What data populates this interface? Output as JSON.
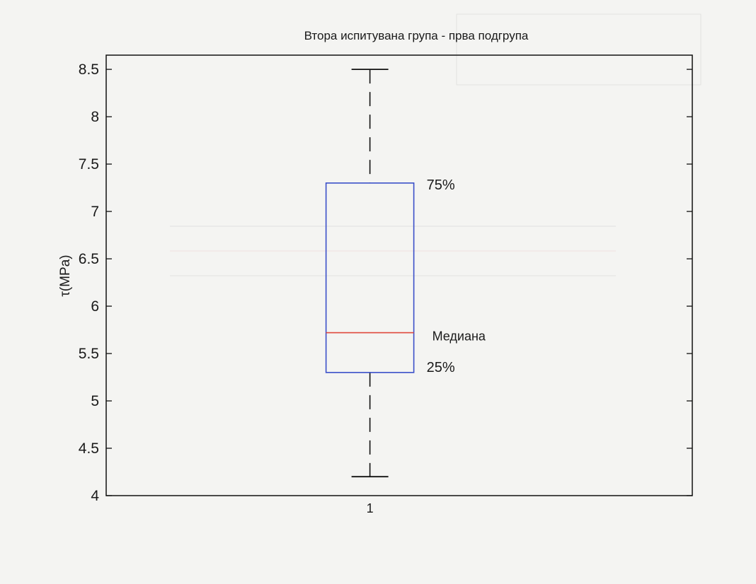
{
  "chart_data": {
    "type": "box",
    "title": "Втора испитувана група - прва подгрупа",
    "xlabel": "",
    "ylabel": "τ(MPa)",
    "ylim": [
      4,
      8.65
    ],
    "yticks": [
      4,
      4.5,
      5,
      5.5,
      6,
      6.5,
      7,
      7.5,
      8,
      8.5
    ],
    "ytick_labels": [
      "4",
      "4.5",
      "5",
      "5.5",
      "6",
      "6.5",
      "7",
      "7.5",
      "8",
      "8.5"
    ],
    "categories": [
      "1"
    ],
    "boxes": [
      {
        "category": "1",
        "min": 4.2,
        "q1": 5.3,
        "median": 5.72,
        "q3": 7.3,
        "max": 8.5
      }
    ],
    "annotations": {
      "q3_label": "75%",
      "median_label": "Медиана",
      "q1_label": "25%"
    },
    "colors": {
      "box": "#3a4fc8",
      "median": "#e0483c",
      "whisker": "#111111",
      "axes": "#111111"
    },
    "grid": false
  }
}
